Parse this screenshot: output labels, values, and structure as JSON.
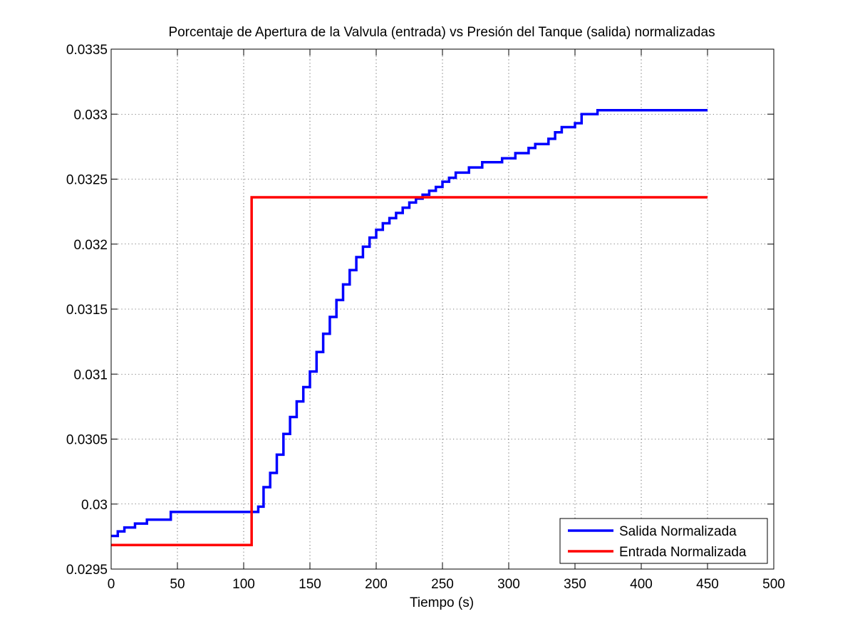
{
  "chart_data": {
    "type": "line",
    "title": "Porcentaje de Apertura de la Valvula (entrada) vs Presión del Tanque (salida) normalizadas",
    "xlabel": "Tiempo (s)",
    "ylabel": "",
    "xlim": [
      0,
      500
    ],
    "ylim": [
      0.0295,
      0.0335
    ],
    "xticks": [
      0,
      50,
      100,
      150,
      200,
      250,
      300,
      350,
      400,
      450,
      500
    ],
    "xtick_labels": [
      "0",
      "50",
      "100",
      "150",
      "200",
      "250",
      "300",
      "350",
      "400",
      "450",
      "500"
    ],
    "yticks": [
      0.0295,
      0.03,
      0.0305,
      0.031,
      0.0315,
      0.032,
      0.0325,
      0.033,
      0.0335
    ],
    "ytick_labels": [
      "0.0295",
      "0.03",
      "0.0305",
      "0.031",
      "0.0315",
      "0.032",
      "0.0325",
      "0.033",
      "0.0335"
    ],
    "grid": true,
    "legend_position": "bottom-right",
    "series": [
      {
        "name": "Salida Normalizada",
        "color": "#0000ff",
        "step": true,
        "x": [
          0,
          5,
          10,
          18,
          27,
          45,
          108,
          111,
          115,
          120,
          125,
          130,
          135,
          140,
          145,
          150,
          155,
          160,
          165,
          170,
          175,
          180,
          185,
          190,
          195,
          200,
          205,
          210,
          215,
          220,
          225,
          230,
          235,
          240,
          245,
          250,
          255,
          260,
          270,
          280,
          295,
          305,
          315,
          320,
          330,
          335,
          340,
          350,
          355,
          367,
          450
        ],
        "y": [
          0.029755,
          0.02979,
          0.02982,
          0.02985,
          0.02988,
          0.02994,
          0.02994,
          0.02998,
          0.03013,
          0.03024,
          0.03038,
          0.03054,
          0.03067,
          0.03079,
          0.0309,
          0.03102,
          0.03117,
          0.03131,
          0.03144,
          0.03157,
          0.03169,
          0.0318,
          0.0319,
          0.03198,
          0.03205,
          0.03211,
          0.03216,
          0.0322,
          0.03224,
          0.03228,
          0.03232,
          0.03235,
          0.03238,
          0.03241,
          0.03244,
          0.03248,
          0.03251,
          0.03255,
          0.03259,
          0.03263,
          0.03266,
          0.0327,
          0.03274,
          0.03277,
          0.03281,
          0.03286,
          0.0329,
          0.03293,
          0.033,
          0.03303,
          0.03303
        ]
      },
      {
        "name": "Entrada Normalizada",
        "color": "#ff0000",
        "step": true,
        "x": [
          0,
          106,
          450
        ],
        "y": [
          0.029685,
          0.03236,
          0.03236
        ]
      }
    ]
  }
}
